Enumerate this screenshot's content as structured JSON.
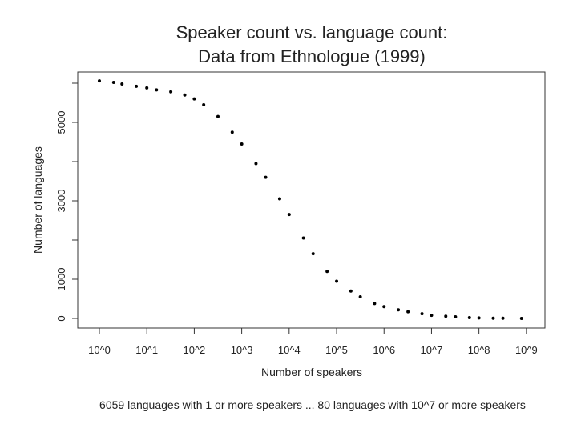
{
  "chart_data": {
    "type": "scatter",
    "title": [
      "Speaker count vs. language count:",
      "Data from Ethnologue (1999)"
    ],
    "x_label": "Number of speakers",
    "y_label": "Number of languages",
    "caption": "6059 languages with 1 or more speakers ... 80 languages with 10^7 or more speakers",
    "x": [
      1,
      2,
      3,
      6,
      10,
      16,
      32,
      63,
      100,
      158,
      316,
      631,
      1000,
      2000,
      3200,
      6300,
      10000,
      20000,
      32000,
      63000,
      100000,
      200000,
      316000,
      631000,
      1000000,
      2000000,
      3200000,
      6300000,
      10000000,
      20000000,
      32000000,
      63000000,
      100000000,
      200000000,
      320000000,
      790000000
    ],
    "values": [
      6059,
      6020,
      5980,
      5920,
      5880,
      5830,
      5780,
      5700,
      5600,
      5450,
      5150,
      4750,
      4450,
      3950,
      3600,
      3050,
      2650,
      2050,
      1650,
      1200,
      950,
      700,
      550,
      380,
      300,
      220,
      170,
      120,
      80,
      55,
      40,
      20,
      12,
      6,
      4,
      1
    ],
    "color": "#000000",
    "xscale": "log",
    "xlim": [
      0.35,
      2460000000
    ],
    "xticks": [
      {
        "value": 1,
        "label": "10^0"
      },
      {
        "value": 10,
        "label": "10^1"
      },
      {
        "value": 100,
        "label": "10^2"
      },
      {
        "value": 1000,
        "label": "10^3"
      },
      {
        "value": 10000,
        "label": "10^4"
      },
      {
        "value": 100000,
        "label": "10^5"
      },
      {
        "value": 1000000,
        "label": "10^6"
      },
      {
        "value": 10000000,
        "label": "10^7"
      },
      {
        "value": 100000000,
        "label": "10^8"
      },
      {
        "value": 1000000000,
        "label": "10^9"
      }
    ],
    "ylim": [
      -245,
      6286
    ],
    "yticks": [
      0,
      1000,
      {
        "value": 2000,
        "label": null
      },
      3000,
      {
        "value": 4000,
        "label": null
      },
      5000,
      {
        "value": 6000,
        "label": null
      }
    ]
  }
}
